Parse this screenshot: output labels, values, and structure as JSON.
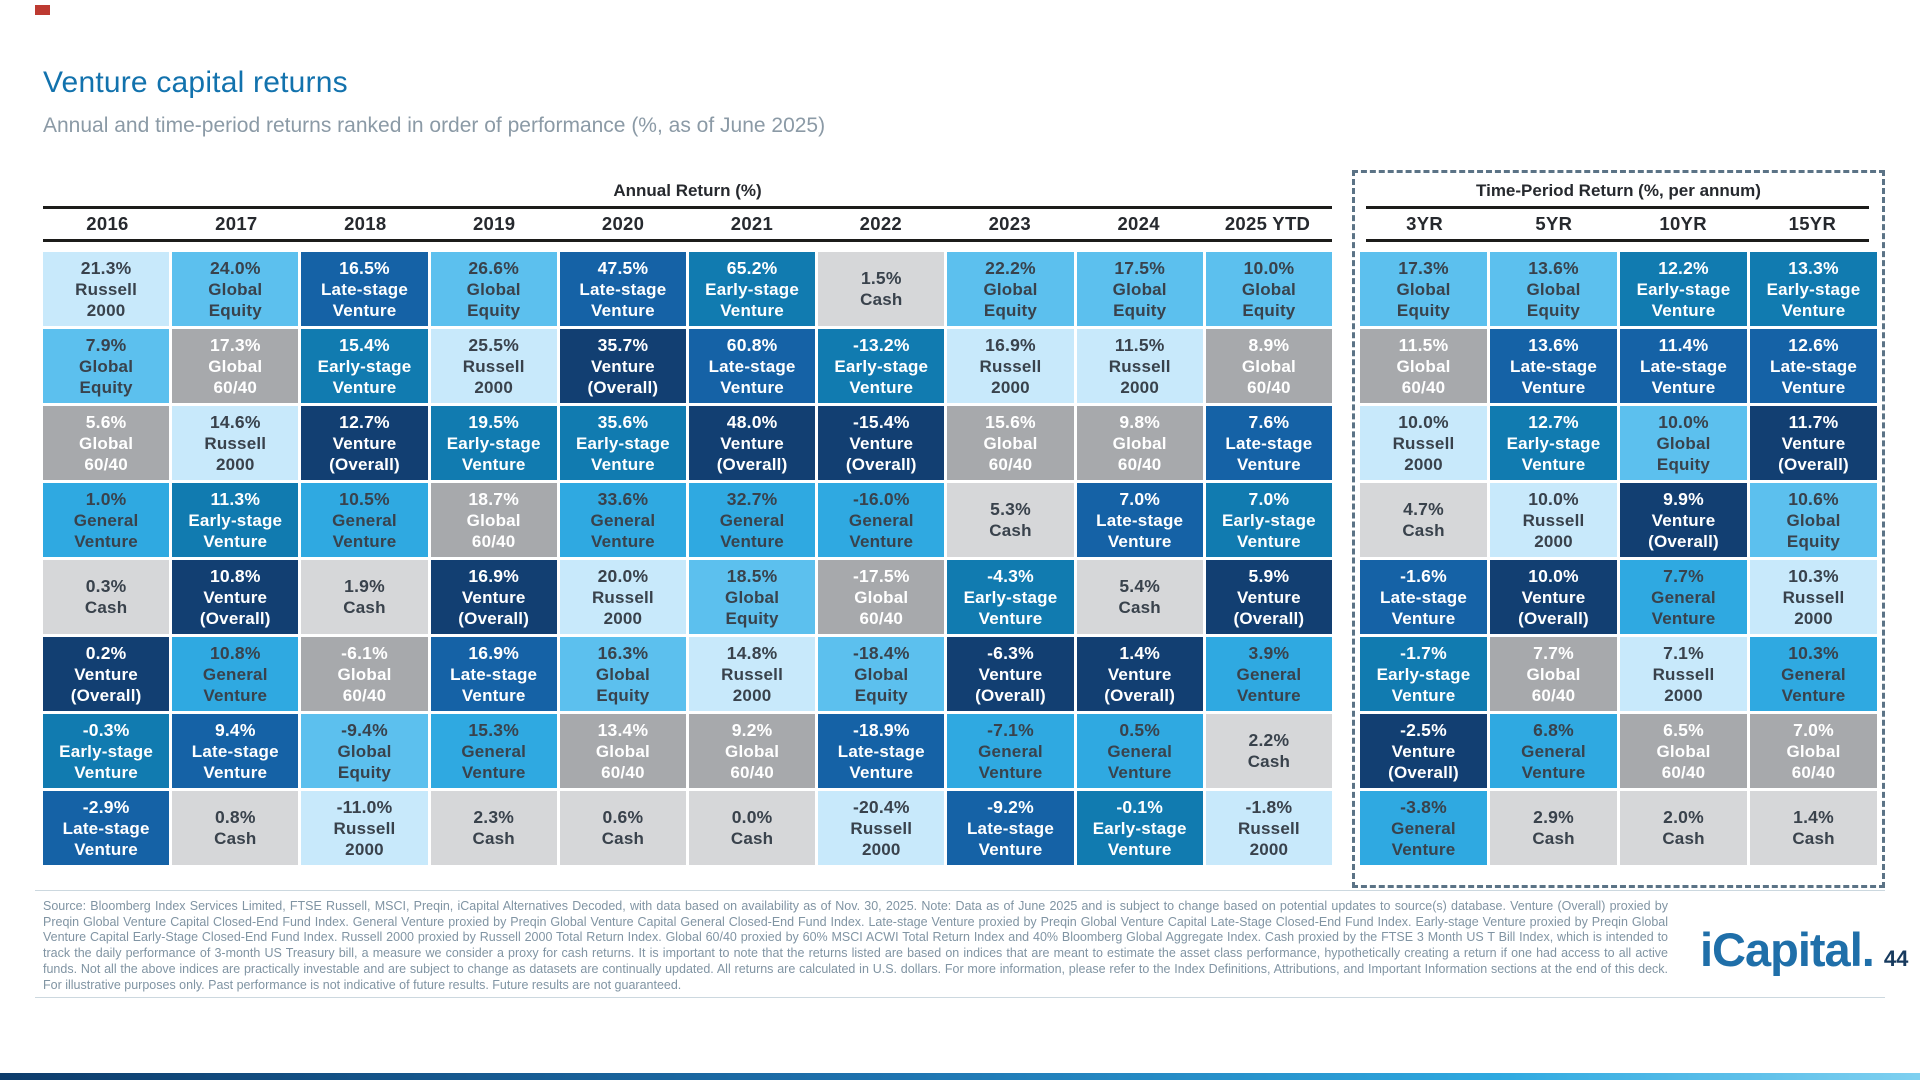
{
  "page": {
    "title": "Venture capital returns",
    "subtitle": "Annual and time-period returns ranked in order of performance (%, as of June 2025)",
    "logo": "iCapital",
    "logo_suffix": ".",
    "page_number": "44",
    "footer_text": "Source: Bloomberg Index Services Limited, FTSE Russell, MSCI, Preqin, iCapital Alternatives Decoded, with data based on availability as of Nov. 30, 2025. Note: Data as of June 2025 and is subject to change based on potential updates to source(s) database. Venture (Overall) proxied by Preqin Global Venture Capital Closed-End Fund Index. General Venture proxied by Preqin Global Venture Capital General Closed-End Fund Index. Late-stage Venture proxied by Preqin Global Venture Capital Late-Stage Closed-End Fund Index. Early-stage Venture proxied by Preqin Global Venture Capital Early-Stage Closed-End Fund Index. Russell 2000 proxied by Russell 2000 Total Return Index. Global 60/40 proxied by 60% MSCI ACWI Total Return Index and 40% Bloomberg Global Aggregate Index. Cash proxied by the FTSE 3 Month US T Bill Index, which is intended to track the daily performance of 3-month US Treasury bill, a measure we consider a proxy for cash returns. It is important to note that the returns listed are based on indices that are meant to estimate the asset class performance, hypothetically creating a return if one had access to all active funds. Not all the above indices are practically investable and are subject to change as datasets are continually updated. All returns are calculated in U.S. dollars. For more information, please refer to the Index Definitions, Attributions, and Important Information sections at the end of this deck. For illustrative purposes only. Past performance is not indicative of future results. Future results are not guaranteed."
  },
  "assets": {
    "russell2000": {
      "name": "Russell 2000",
      "lines": [
        "Russell",
        "2000"
      ],
      "bg": "#c8e9fb",
      "fg": "#39424c"
    },
    "globalEquity": {
      "name": "Global Equity",
      "lines": [
        "Global",
        "Equity"
      ],
      "bg": "#5cc0ee",
      "fg": "#39424c"
    },
    "global6040": {
      "name": "Global 60/40",
      "lines": [
        "Global",
        "60/40"
      ],
      "bg": "#a7a9ac",
      "fg": "#ffffff"
    },
    "cash": {
      "name": "Cash",
      "lines": [
        "Cash"
      ],
      "bg": "#d6d7d9",
      "fg": "#39424c"
    },
    "generalVenture": {
      "name": "General Venture",
      "lines": [
        "General",
        "Venture"
      ],
      "bg": "#2fa9e1",
      "fg": "#39424c"
    },
    "earlyStage": {
      "name": "Early-stage Venture",
      "lines": [
        "Early-stage",
        "Venture"
      ],
      "bg": "#117bb0",
      "fg": "#ffffff"
    },
    "lateStage": {
      "name": "Late-stage Venture",
      "lines": [
        "Late-stage",
        "Venture"
      ],
      "bg": "#1562a6",
      "fg": "#ffffff"
    },
    "ventureOverall": {
      "name": "Venture (Overall)",
      "lines": [
        "Venture",
        "(Overall)"
      ],
      "bg": "#123f72",
      "fg": "#ffffff"
    }
  },
  "chart_data": {
    "type": "table",
    "title_left": "Annual Return (%)",
    "title_right": "Time-Period Return (%, per annum)",
    "annual_columns": [
      "2016",
      "2017",
      "2018",
      "2019",
      "2020",
      "2021",
      "2022",
      "2023",
      "2024",
      "2025 YTD"
    ],
    "time_period_columns": [
      "3YR",
      "5YR",
      "10YR",
      "15YR"
    ],
    "annual_cells": [
      [
        {
          "v": "21.3%",
          "a": "russell2000"
        },
        {
          "v": "7.9%",
          "a": "globalEquity"
        },
        {
          "v": "5.6%",
          "a": "global6040"
        },
        {
          "v": "1.0%",
          "a": "generalVenture"
        },
        {
          "v": "0.3%",
          "a": "cash"
        },
        {
          "v": "0.2%",
          "a": "ventureOverall"
        },
        {
          "v": "-0.3%",
          "a": "earlyStage"
        },
        {
          "v": "-2.9%",
          "a": "lateStage"
        }
      ],
      [
        {
          "v": "24.0%",
          "a": "globalEquity"
        },
        {
          "v": "17.3%",
          "a": "global6040"
        },
        {
          "v": "14.6%",
          "a": "russell2000"
        },
        {
          "v": "11.3%",
          "a": "earlyStage"
        },
        {
          "v": "10.8%",
          "a": "ventureOverall"
        },
        {
          "v": "10.8%",
          "a": "generalVenture"
        },
        {
          "v": "9.4%",
          "a": "lateStage"
        },
        {
          "v": "0.8%",
          "a": "cash"
        }
      ],
      [
        {
          "v": "16.5%",
          "a": "lateStage"
        },
        {
          "v": "15.4%",
          "a": "earlyStage"
        },
        {
          "v": "12.7%",
          "a": "ventureOverall"
        },
        {
          "v": "10.5%",
          "a": "generalVenture"
        },
        {
          "v": "1.9%",
          "a": "cash"
        },
        {
          "v": "-6.1%",
          "a": "global6040"
        },
        {
          "v": "-9.4%",
          "a": "globalEquity"
        },
        {
          "v": "-11.0%",
          "a": "russell2000"
        }
      ],
      [
        {
          "v": "26.6%",
          "a": "globalEquity"
        },
        {
          "v": "25.5%",
          "a": "russell2000"
        },
        {
          "v": "19.5%",
          "a": "earlyStage"
        },
        {
          "v": "18.7%",
          "a": "global6040"
        },
        {
          "v": "16.9%",
          "a": "ventureOverall"
        },
        {
          "v": "16.9%",
          "a": "lateStage"
        },
        {
          "v": "15.3%",
          "a": "generalVenture"
        },
        {
          "v": "2.3%",
          "a": "cash"
        }
      ],
      [
        {
          "v": "47.5%",
          "a": "lateStage"
        },
        {
          "v": "35.7%",
          "a": "ventureOverall"
        },
        {
          "v": "35.6%",
          "a": "earlyStage"
        },
        {
          "v": "33.6%",
          "a": "generalVenture"
        },
        {
          "v": "20.0%",
          "a": "russell2000"
        },
        {
          "v": "16.3%",
          "a": "globalEquity"
        },
        {
          "v": "13.4%",
          "a": "global6040"
        },
        {
          "v": "0.6%",
          "a": "cash"
        }
      ],
      [
        {
          "v": "65.2%",
          "a": "earlyStage"
        },
        {
          "v": "60.8%",
          "a": "lateStage"
        },
        {
          "v": "48.0%",
          "a": "ventureOverall"
        },
        {
          "v": "32.7%",
          "a": "generalVenture"
        },
        {
          "v": "18.5%",
          "a": "globalEquity"
        },
        {
          "v": "14.8%",
          "a": "russell2000"
        },
        {
          "v": "9.2%",
          "a": "global6040"
        },
        {
          "v": "0.0%",
          "a": "cash"
        }
      ],
      [
        {
          "v": "1.5%",
          "a": "cash"
        },
        {
          "v": "-13.2%",
          "a": "earlyStage"
        },
        {
          "v": "-15.4%",
          "a": "ventureOverall"
        },
        {
          "v": "-16.0%",
          "a": "generalVenture"
        },
        {
          "v": "-17.5%",
          "a": "global6040"
        },
        {
          "v": "-18.4%",
          "a": "globalEquity"
        },
        {
          "v": "-18.9%",
          "a": "lateStage"
        },
        {
          "v": "-20.4%",
          "a": "russell2000"
        }
      ],
      [
        {
          "v": "22.2%",
          "a": "globalEquity"
        },
        {
          "v": "16.9%",
          "a": "russell2000"
        },
        {
          "v": "15.6%",
          "a": "global6040"
        },
        {
          "v": "5.3%",
          "a": "cash"
        },
        {
          "v": "-4.3%",
          "a": "earlyStage"
        },
        {
          "v": "-6.3%",
          "a": "ventureOverall"
        },
        {
          "v": "-7.1%",
          "a": "generalVenture"
        },
        {
          "v": "-9.2%",
          "a": "lateStage"
        }
      ],
      [
        {
          "v": "17.5%",
          "a": "globalEquity"
        },
        {
          "v": "11.5%",
          "a": "russell2000"
        },
        {
          "v": "9.8%",
          "a": "global6040"
        },
        {
          "v": "7.0%",
          "a": "lateStage"
        },
        {
          "v": "5.4%",
          "a": "cash"
        },
        {
          "v": "1.4%",
          "a": "ventureOverall"
        },
        {
          "v": "0.5%",
          "a": "generalVenture"
        },
        {
          "v": "-0.1%",
          "a": "earlyStage"
        }
      ],
      [
        {
          "v": "10.0%",
          "a": "globalEquity"
        },
        {
          "v": "8.9%",
          "a": "global6040"
        },
        {
          "v": "7.6%",
          "a": "lateStage"
        },
        {
          "v": "7.0%",
          "a": "earlyStage"
        },
        {
          "v": "5.9%",
          "a": "ventureOverall"
        },
        {
          "v": "3.9%",
          "a": "generalVenture"
        },
        {
          "v": "2.2%",
          "a": "cash"
        },
        {
          "v": "-1.8%",
          "a": "russell2000"
        }
      ]
    ],
    "time_period_cells": [
      [
        {
          "v": "17.3%",
          "a": "globalEquity"
        },
        {
          "v": "11.5%",
          "a": "global6040"
        },
        {
          "v": "10.0%",
          "a": "russell2000"
        },
        {
          "v": "4.7%",
          "a": "cash"
        },
        {
          "v": "-1.6%",
          "a": "lateStage"
        },
        {
          "v": "-1.7%",
          "a": "earlyStage"
        },
        {
          "v": "-2.5%",
          "a": "ventureOverall"
        },
        {
          "v": "-3.8%",
          "a": "generalVenture"
        }
      ],
      [
        {
          "v": "13.6%",
          "a": "globalEquity"
        },
        {
          "v": "13.6%",
          "a": "lateStage"
        },
        {
          "v": "12.7%",
          "a": "earlyStage"
        },
        {
          "v": "10.0%",
          "a": "russell2000"
        },
        {
          "v": "10.0%",
          "a": "ventureOverall"
        },
        {
          "v": "7.7%",
          "a": "global6040"
        },
        {
          "v": "6.8%",
          "a": "generalVenture"
        },
        {
          "v": "2.9%",
          "a": "cash"
        }
      ],
      [
        {
          "v": "12.2%",
          "a": "earlyStage"
        },
        {
          "v": "11.4%",
          "a": "lateStage"
        },
        {
          "v": "10.0%",
          "a": "globalEquity"
        },
        {
          "v": "9.9%",
          "a": "ventureOverall"
        },
        {
          "v": "7.7%",
          "a": "generalVenture"
        },
        {
          "v": "7.1%",
          "a": "russell2000"
        },
        {
          "v": "6.5%",
          "a": "global6040"
        },
        {
          "v": "2.0%",
          "a": "cash"
        }
      ],
      [
        {
          "v": "13.3%",
          "a": "earlyStage"
        },
        {
          "v": "12.6%",
          "a": "lateStage"
        },
        {
          "v": "11.7%",
          "a": "ventureOverall"
        },
        {
          "v": "10.6%",
          "a": "globalEquity"
        },
        {
          "v": "10.3%",
          "a": "russell2000"
        },
        {
          "v": "10.3%",
          "a": "generalVenture"
        },
        {
          "v": "7.0%",
          "a": "global6040"
        },
        {
          "v": "1.4%",
          "a": "cash"
        }
      ]
    ]
  }
}
